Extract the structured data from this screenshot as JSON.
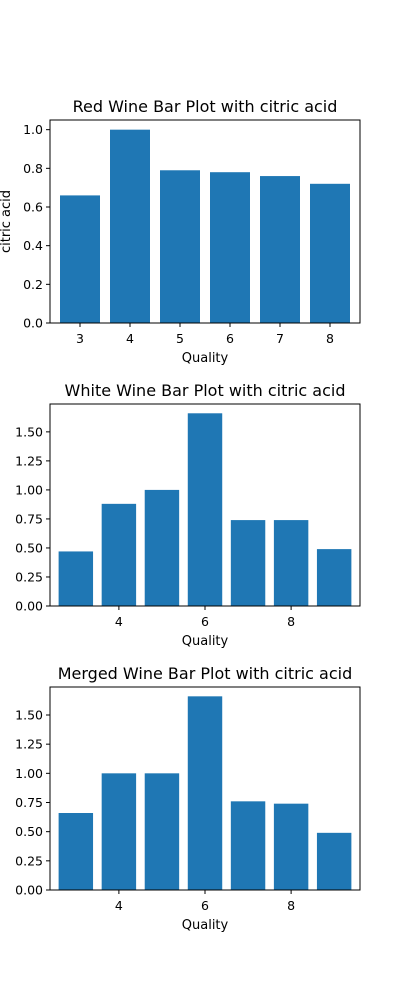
{
  "bar_color": "#1f77b4",
  "chart_data": [
    {
      "type": "bar",
      "title": "Red Wine Bar Plot with citric acid",
      "xlabel": "Quality",
      "ylabel": "citric acid",
      "categories": [
        3,
        4,
        5,
        6,
        7,
        8
      ],
      "values": [
        0.66,
        1.0,
        0.79,
        0.78,
        0.76,
        0.72
      ],
      "xlim": [
        2.4,
        8.6
      ],
      "ylim": [
        0,
        1.05
      ],
      "xticks": [
        3,
        4,
        5,
        6,
        7,
        8
      ],
      "xtick_labels": [
        "3",
        "4",
        "5",
        "6",
        "7",
        "8"
      ],
      "yticks": [
        0.0,
        0.2,
        0.4,
        0.6,
        0.8,
        1.0
      ],
      "ytick_labels": [
        "0.0",
        "0.2",
        "0.4",
        "0.6",
        "0.8",
        "1.0"
      ],
      "grid": false,
      "legend": false
    },
    {
      "type": "bar",
      "title": "White Wine Bar Plot with citric acid",
      "xlabel": "Quality",
      "ylabel": "",
      "categories": [
        3,
        4,
        5,
        6,
        7,
        8,
        9
      ],
      "values": [
        0.47,
        0.88,
        1.0,
        1.66,
        0.74,
        0.74,
        0.49
      ],
      "xlim": [
        2.4,
        9.6
      ],
      "ylim": [
        0,
        1.74
      ],
      "xticks": [
        4,
        6,
        8
      ],
      "xtick_labels": [
        "4",
        "6",
        "8"
      ],
      "yticks": [
        0.0,
        0.25,
        0.5,
        0.75,
        1.0,
        1.25,
        1.5
      ],
      "ytick_labels": [
        "0.00",
        "0.25",
        "0.50",
        "0.75",
        "1.00",
        "1.25",
        "1.50"
      ],
      "grid": false,
      "legend": false
    },
    {
      "type": "bar",
      "title": "Merged Wine Bar Plot with citric acid",
      "xlabel": "Quality",
      "ylabel": "",
      "categories": [
        3,
        4,
        5,
        6,
        7,
        8,
        9
      ],
      "values": [
        0.66,
        1.0,
        1.0,
        1.66,
        0.76,
        0.74,
        0.49
      ],
      "xlim": [
        2.4,
        9.6
      ],
      "ylim": [
        0,
        1.74
      ],
      "xticks": [
        4,
        6,
        8
      ],
      "xtick_labels": [
        "4",
        "6",
        "8"
      ],
      "yticks": [
        0.0,
        0.25,
        0.5,
        0.75,
        1.0,
        1.25,
        1.5
      ],
      "ytick_labels": [
        "0.00",
        "0.25",
        "0.50",
        "0.75",
        "1.00",
        "1.25",
        "1.50"
      ],
      "grid": false,
      "legend": false
    }
  ]
}
